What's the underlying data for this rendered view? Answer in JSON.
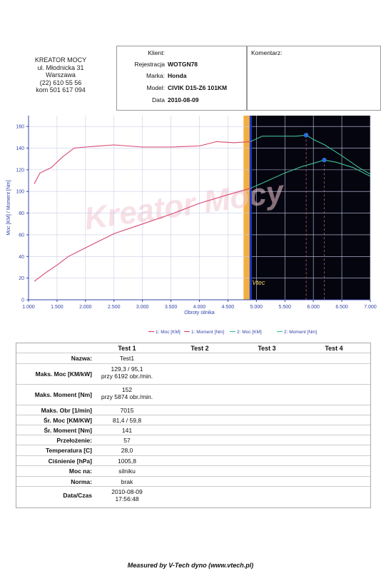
{
  "company": {
    "name": "KREATOR MOCY",
    "street": "ul. Młodnicka 31",
    "city": "Warszawa",
    "phone": "(22) 610 55 56",
    "mobile": "kom 501 617 094"
  },
  "client": {
    "client_label": "Klient:",
    "client_value": "",
    "reg_label": "Rejestracja",
    "reg_value": "WOTGN78",
    "make_label": "Marka:",
    "make_value": "Honda",
    "model_label": "Model:",
    "model_value": "CIVIK D15-Z6 101KM",
    "date_label": "Data",
    "date_value": "2010-08-09"
  },
  "comment": {
    "label": "Komentarz:",
    "value": ""
  },
  "chart_data": {
    "type": "line",
    "xlabel": "Obroty silnika",
    "ylabel": "Moc [KM] / Moment [Nm]",
    "xlim": [
      1000,
      7000
    ],
    "ylim": [
      0,
      170
    ],
    "x_ticks": [
      "1.000",
      "1.500",
      "2.000",
      "2.500",
      "3.000",
      "3.500",
      "4.000",
      "4.500",
      "5.000",
      "5.500",
      "6.000",
      "6.500",
      "7.000"
    ],
    "x_tick_values": [
      1000,
      1500,
      2000,
      2500,
      3000,
      3500,
      4000,
      4500,
      5000,
      5500,
      6000,
      6500,
      7000
    ],
    "y_ticks": [
      "0",
      "20",
      "40",
      "60",
      "80",
      "100",
      "120",
      "140",
      "160"
    ],
    "y_tick_values": [
      0,
      20,
      40,
      60,
      80,
      100,
      120,
      140,
      160
    ],
    "vtec_label": "Vtec",
    "vtec_x": 4900,
    "watermark": "Kreator Mocy",
    "series": [
      {
        "name": "1: Moc [KM]",
        "color": "#d9476e",
        "x": [
          1100,
          1300,
          1500,
          1700,
          2000,
          2500,
          3000,
          3500,
          4000,
          4500,
          4900
        ],
        "values": [
          17,
          25,
          32,
          40,
          48,
          61,
          70,
          79,
          89,
          97,
          103
        ]
      },
      {
        "name": "1: Moment [Nm]",
        "color": "#d9476e",
        "x": [
          1100,
          1200,
          1400,
          1600,
          1800,
          2000,
          2500,
          3000,
          3500,
          4000,
          4300,
          4600,
          4900
        ],
        "values": [
          107,
          117,
          122,
          132,
          140,
          141,
          143,
          141,
          141,
          142,
          146,
          145,
          146
        ]
      },
      {
        "name": "2: Moc [KM]",
        "color": "#3fbf8f",
        "x": [
          4900,
          5200,
          5500,
          5800,
          6000,
          6192,
          6400,
          6700,
          7000
        ],
        "values": [
          103,
          110,
          117,
          123,
          126,
          129,
          127,
          122,
          114
        ]
      },
      {
        "name": "2: Moment [Nm]",
        "color": "#3fbf8f",
        "x": [
          4900,
          5100,
          5400,
          5700,
          5874,
          6000,
          6200,
          6500,
          6800,
          7000
        ],
        "values": [
          146,
          151,
          151,
          151,
          152,
          148,
          143,
          133,
          122,
          116
        ]
      }
    ],
    "markers": [
      {
        "x": 5874,
        "y": 152
      },
      {
        "x": 6192,
        "y": 129
      }
    ],
    "legend": {
      "position": "bottom",
      "entries": [
        "1: Moc [KM]",
        "1: Moment [Nm]",
        "2: Moc [KM]",
        "2: Moment [Nm]"
      ]
    },
    "colors": {
      "dark_bg": "#050510",
      "vtec_band": "#f0a020",
      "vtec_line": "#1a3ad0",
      "axis": "#3344aa",
      "red": "#d9476e",
      "green": "#3fbf8f",
      "marker": "#2a6fd8"
    }
  },
  "results": {
    "headers": [
      "Test 1",
      "Test 2",
      "Test 3",
      "Test 4"
    ],
    "rows": [
      {
        "label": "Nazwa:",
        "line1": "Test1",
        "line2": ""
      },
      {
        "label": "Maks. Moc [KM/kW]",
        "line1": "129,3 / 95,1",
        "line2": "przy 6192 obr./min."
      },
      {
        "label": "Maks. Moment [Nm]",
        "line1": "152",
        "line2": "przy 5874 obr./min."
      },
      {
        "label": "Maks. Obr [1/min]",
        "line1": "7015",
        "line2": ""
      },
      {
        "label": "Śr. Moc [KM/KW]",
        "line1": "81,4 / 59,8",
        "line2": ""
      },
      {
        "label": "Śr. Moment [Nm]",
        "line1": "141",
        "line2": ""
      },
      {
        "label": "Przełożenie:",
        "line1": "57",
        "line2": ""
      },
      {
        "label": "Temperatura [C]",
        "line1": "28,0",
        "line2": ""
      },
      {
        "label": "Ciśnienie [hPa]",
        "line1": "1005,8",
        "line2": ""
      },
      {
        "label": "Moc na:",
        "line1": "silniku",
        "line2": ""
      },
      {
        "label": "Norma:",
        "line1": "brak",
        "line2": ""
      },
      {
        "label": "Data/Czas",
        "line1": "2010-08-09",
        "line2": "17:56:48"
      }
    ]
  },
  "footer": "Measured by V-Tech dyno (www.vtech.pl)"
}
